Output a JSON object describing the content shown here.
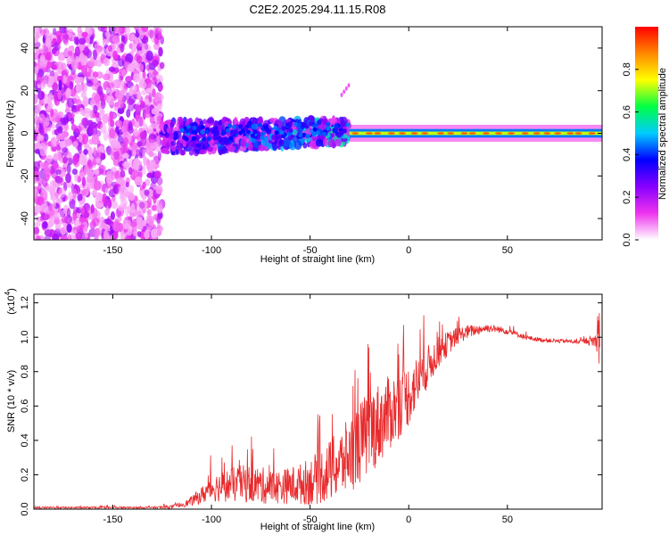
{
  "title": "C2E2.2025.294.11.15.R08",
  "chart_data": [
    {
      "type": "heatmap",
      "title": "C2E2.2025.294.11.15.R08",
      "xlabel": "Height of straight line (km)",
      "ylabel": "Frequency (Hz)",
      "xlim": [
        -190,
        98
      ],
      "ylim": [
        -50,
        50
      ],
      "xticks": [
        -150,
        -100,
        -50,
        0,
        50
      ],
      "yticks": [
        -40,
        -20,
        0,
        20,
        40
      ],
      "xtick_labels": [
        "-150",
        "-100",
        "-50",
        "0",
        "50"
      ],
      "ytick_labels": [
        "-40",
        "-20",
        "0",
        "20",
        "40"
      ],
      "description_regions": [
        {
          "name": "noise",
          "x_range": [
            -190,
            -125
          ],
          "freq_range": [
            -50,
            50
          ]
        },
        {
          "name": "scattered_signal",
          "x_range": [
            -125,
            -30
          ],
          "freq_range": [
            -10,
            8
          ]
        },
        {
          "name": "steady_tone",
          "x_range": [
            -30,
            98
          ],
          "freq_range": [
            -2,
            2
          ],
          "center_freq": 0
        }
      ],
      "colorbar": {
        "label": "Normalized spectral amplitude",
        "range": [
          0,
          1
        ],
        "ticks": [
          "0.0",
          "0.2",
          "0.4",
          "0.6",
          "0.8"
        ],
        "tick_values": [
          0.0,
          0.2,
          0.4,
          0.6,
          0.8
        ],
        "colors": [
          "#ffffff",
          "#ee33ee",
          "#8800ff",
          "#0000ff",
          "#00ccff",
          "#00ff44",
          "#ffff00",
          "#ff8800",
          "#ff0000"
        ]
      }
    },
    {
      "type": "line",
      "xlabel": "Height of straight line (km)",
      "ylabel": "SNR (10 * v/v)",
      "scale_label": "(x10",
      "scale_exponent": "4",
      "scale_close": ")",
      "xlim": [
        -190,
        98
      ],
      "ylim": [
        0,
        1.25
      ],
      "xticks": [
        -150,
        -100,
        -50,
        0,
        50
      ],
      "yticks": [
        0.0,
        0.2,
        0.4,
        0.6,
        0.8,
        1.0,
        1.2
      ],
      "xtick_labels": [
        "-150",
        "-100",
        "-50",
        "0",
        "50"
      ],
      "ytick_labels": [
        "0.0",
        "0.2",
        "0.4",
        "0.6",
        "0.8",
        "1.0",
        "1.2"
      ],
      "series": [
        {
          "name": "SNR",
          "color": "#e8292b",
          "x": [
            -190,
            -170,
            -150,
            -130,
            -120,
            -112,
            -105,
            -100,
            -95,
            -90,
            -85,
            -80,
            -75,
            -70,
            -65,
            -60,
            -55,
            -50,
            -45,
            -40,
            -35,
            -30,
            -25,
            -20,
            -15,
            -10,
            -5,
            0,
            5,
            10,
            15,
            20,
            25,
            30,
            35,
            40,
            45,
            50,
            55,
            60,
            65,
            70,
            75,
            80,
            85,
            90,
            95,
            97
          ],
          "values": [
            0.01,
            0.01,
            0.01,
            0.01,
            0.015,
            0.04,
            0.09,
            0.14,
            0.15,
            0.16,
            0.17,
            0.17,
            0.16,
            0.15,
            0.15,
            0.16,
            0.17,
            0.19,
            0.22,
            0.26,
            0.3,
            0.36,
            0.43,
            0.5,
            0.55,
            0.6,
            0.65,
            0.7,
            0.78,
            0.86,
            0.93,
            0.98,
            1.02,
            1.04,
            1.05,
            1.06,
            1.05,
            1.04,
            1.02,
            1.0,
            0.99,
            0.985,
            0.98,
            0.98,
            0.975,
            0.98,
            0.99,
            1.05
          ],
          "spread": [
            0.005,
            0.005,
            0.005,
            0.005,
            0.01,
            0.02,
            0.05,
            0.08,
            0.09,
            0.1,
            0.11,
            0.11,
            0.11,
            0.1,
            0.1,
            0.11,
            0.12,
            0.14,
            0.16,
            0.18,
            0.2,
            0.22,
            0.24,
            0.25,
            0.24,
            0.22,
            0.2,
            0.18,
            0.15,
            0.12,
            0.09,
            0.07,
            0.05,
            0.04,
            0.03,
            0.025,
            0.02,
            0.02,
            0.015,
            0.015,
            0.012,
            0.012,
            0.012,
            0.012,
            0.012,
            0.015,
            0.05,
            0.2
          ]
        }
      ]
    }
  ]
}
